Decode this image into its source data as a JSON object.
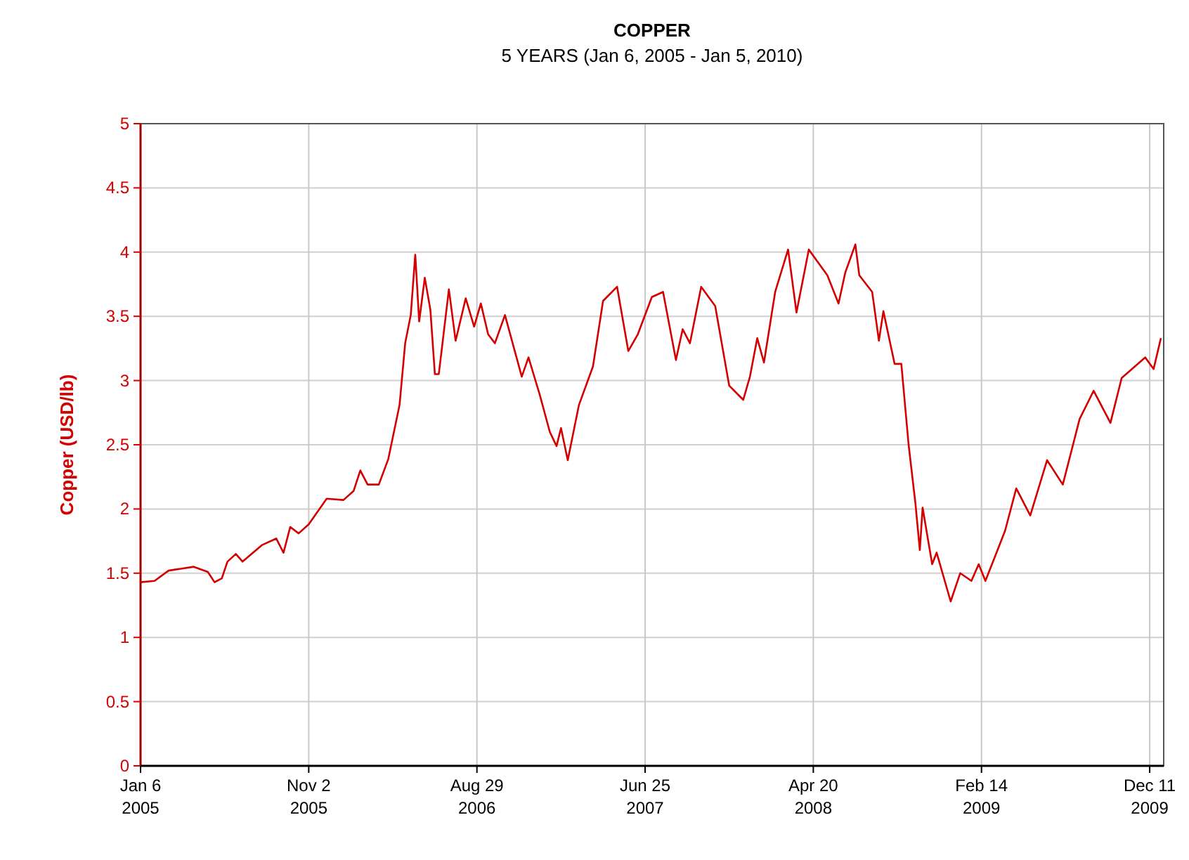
{
  "chart_data": {
    "type": "line",
    "title": "COPPER",
    "subtitle": "5 YEARS (Jan 6, 2005 - Jan 5, 2010)",
    "ylabel": "Copper (USD/lb)",
    "xlim": [
      "2005-01-06",
      "2010-01-05"
    ],
    "xticks": [
      {
        "value": "2005-01-06",
        "label": "Jan 6\n2005"
      },
      {
        "value": "2005-11-02",
        "label": "Nov 2\n2005"
      },
      {
        "value": "2006-08-29",
        "label": "Aug 29\n2006"
      },
      {
        "value": "2007-06-25",
        "label": "Jun 25\n2007"
      },
      {
        "value": "2008-04-20",
        "label": "Apr 20\n2008"
      },
      {
        "value": "2009-02-14",
        "label": "Feb 14\n2009"
      },
      {
        "value": "2009-12-11",
        "label": "Dec 11\n2009"
      }
    ],
    "ylim": [
      0,
      5
    ],
    "yticks": [
      0,
      0.5,
      1,
      1.5,
      2,
      2.5,
      3,
      3.5,
      4,
      4.5,
      5
    ],
    "grid": true,
    "x": [
      "2005-01-06",
      "2005-01-31",
      "2005-02-25",
      "2005-04-11",
      "2005-05-06",
      "2005-05-18",
      "2005-05-31",
      "2005-06-10",
      "2005-06-25",
      "2005-07-07",
      "2005-08-11",
      "2005-09-05",
      "2005-09-18",
      "2005-09-30",
      "2005-10-15",
      "2005-11-02",
      "2005-12-04",
      "2006-01-03",
      "2006-01-21",
      "2006-02-02",
      "2006-02-15",
      "2006-03-07",
      "2006-03-24",
      "2006-04-13",
      "2006-04-23",
      "2006-05-03",
      "2006-05-11",
      "2006-05-18",
      "2006-05-28",
      "2006-06-07",
      "2006-06-15",
      "2006-06-22",
      "2006-07-10",
      "2006-07-22",
      "2006-08-09",
      "2006-08-24",
      "2006-09-05",
      "2006-09-18",
      "2006-09-30",
      "2006-10-18",
      "2006-11-17",
      "2006-11-29",
      "2006-12-19",
      "2007-01-06",
      "2007-01-18",
      "2007-01-26",
      "2007-02-07",
      "2007-02-27",
      "2007-03-24",
      "2007-04-11",
      "2007-05-06",
      "2007-05-26",
      "2007-06-12",
      "2007-07-07",
      "2007-07-27",
      "2007-08-19",
      "2007-08-31",
      "2007-09-13",
      "2007-10-03",
      "2007-10-28",
      "2007-11-22",
      "2007-12-17",
      "2007-12-29",
      "2008-01-11",
      "2008-01-23",
      "2008-02-12",
      "2008-03-06",
      "2008-03-21",
      "2008-04-12",
      "2008-05-15",
      "2008-06-04",
      "2008-06-16",
      "2008-07-04",
      "2008-07-11",
      "2008-08-03",
      "2008-08-15",
      "2008-08-23",
      "2008-09-12",
      "2008-09-24",
      "2008-10-07",
      "2008-10-19",
      "2008-10-27",
      "2008-11-01",
      "2008-11-18",
      "2008-11-26",
      "2008-12-21",
      "2009-01-07",
      "2009-01-27",
      "2009-02-09",
      "2009-02-21",
      "2009-03-11",
      "2009-03-28",
      "2009-04-17",
      "2009-05-12",
      "2009-06-11",
      "2009-07-09",
      "2009-08-08",
      "2009-09-02",
      "2009-10-02",
      "2009-10-22",
      "2009-12-03",
      "2009-12-18",
      "2009-12-31"
    ],
    "series": [
      {
        "color": "#d40000",
        "values": [
          1.43,
          1.44,
          1.52,
          1.55,
          1.51,
          1.43,
          1.46,
          1.59,
          1.65,
          1.59,
          1.72,
          1.77,
          1.66,
          1.86,
          1.81,
          1.88,
          2.08,
          2.07,
          2.14,
          2.3,
          2.19,
          2.19,
          2.39,
          2.81,
          3.29,
          3.51,
          3.98,
          3.46,
          3.8,
          3.55,
          3.05,
          3.05,
          3.71,
          3.31,
          3.64,
          3.42,
          3.6,
          3.36,
          3.29,
          3.51,
          3.03,
          3.18,
          2.89,
          2.6,
          2.49,
          2.63,
          2.38,
          2.81,
          3.11,
          3.62,
          3.73,
          3.23,
          3.36,
          3.65,
          3.69,
          3.16,
          3.4,
          3.29,
          3.73,
          3.58,
          2.96,
          2.85,
          3.03,
          3.33,
          3.14,
          3.69,
          4.02,
          3.53,
          4.02,
          3.82,
          3.6,
          3.84,
          4.06,
          3.82,
          3.69,
          3.31,
          3.54,
          3.13,
          3.13,
          2.5,
          2.05,
          1.68,
          2.01,
          1.57,
          1.66,
          1.28,
          1.5,
          1.44,
          1.57,
          1.44,
          1.64,
          1.83,
          2.16,
          1.95,
          2.38,
          2.19,
          2.7,
          2.92,
          2.67,
          3.02,
          3.18,
          3.09,
          3.33
        ]
      }
    ]
  }
}
